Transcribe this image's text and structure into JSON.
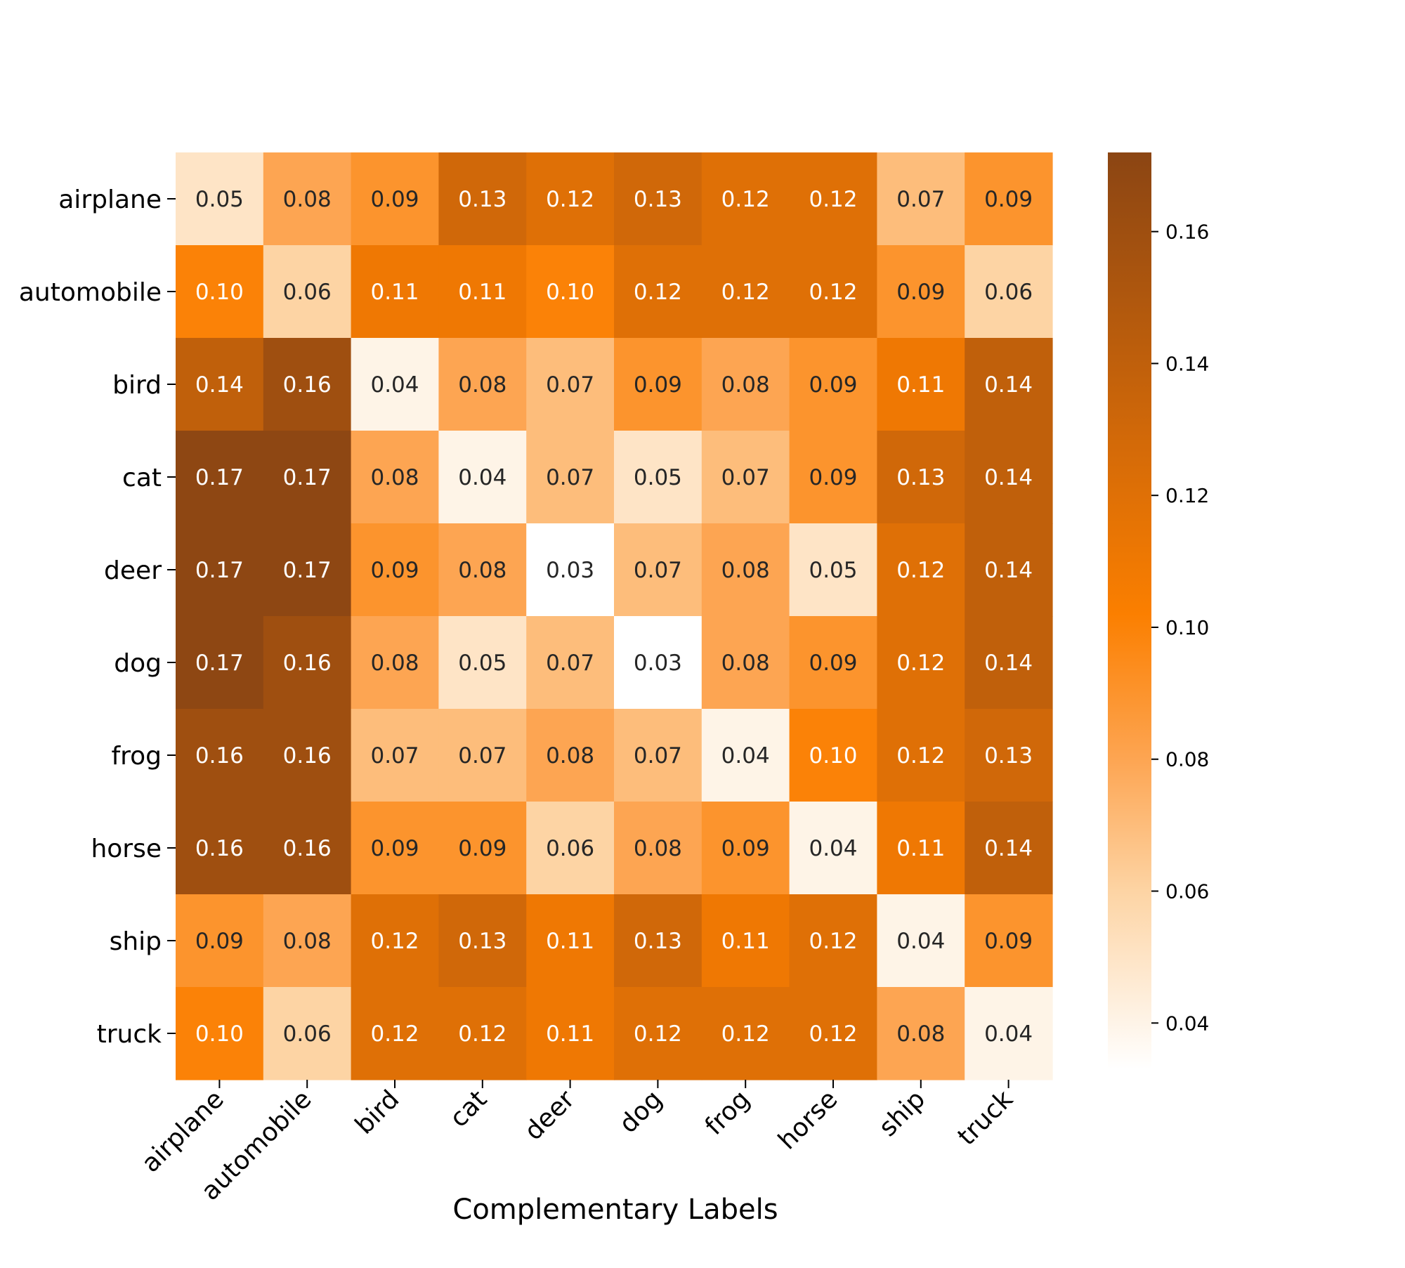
{
  "chart_data": {
    "type": "heatmap",
    "title": "",
    "xlabel": "Complementary Labels",
    "ylabel": "",
    "rows": [
      "airplane",
      "automobile",
      "bird",
      "cat",
      "deer",
      "dog",
      "frog",
      "horse",
      "ship",
      "truck"
    ],
    "columns": [
      "airplane",
      "automobile",
      "bird",
      "cat",
      "deer",
      "dog",
      "frog",
      "horse",
      "ship",
      "truck"
    ],
    "values": [
      [
        0.05,
        0.08,
        0.09,
        0.13,
        0.12,
        0.13,
        0.12,
        0.12,
        0.07,
        0.09
      ],
      [
        0.1,
        0.06,
        0.11,
        0.11,
        0.1,
        0.12,
        0.12,
        0.12,
        0.09,
        0.06
      ],
      [
        0.14,
        0.16,
        0.04,
        0.08,
        0.07,
        0.09,
        0.08,
        0.09,
        0.11,
        0.14
      ],
      [
        0.17,
        0.17,
        0.08,
        0.04,
        0.07,
        0.05,
        0.07,
        0.09,
        0.13,
        0.14
      ],
      [
        0.17,
        0.17,
        0.09,
        0.08,
        0.03,
        0.07,
        0.08,
        0.05,
        0.12,
        0.14
      ],
      [
        0.17,
        0.16,
        0.08,
        0.05,
        0.07,
        0.03,
        0.08,
        0.09,
        0.12,
        0.14
      ],
      [
        0.16,
        0.16,
        0.07,
        0.07,
        0.08,
        0.07,
        0.04,
        0.1,
        0.12,
        0.13
      ],
      [
        0.16,
        0.16,
        0.09,
        0.09,
        0.06,
        0.08,
        0.09,
        0.04,
        0.11,
        0.14
      ],
      [
        0.09,
        0.08,
        0.12,
        0.13,
        0.11,
        0.13,
        0.11,
        0.12,
        0.04,
        0.09
      ],
      [
        0.1,
        0.06,
        0.12,
        0.12,
        0.11,
        0.12,
        0.12,
        0.12,
        0.08,
        0.04
      ]
    ],
    "value_labels": [
      [
        "0.05",
        "0.08",
        "0.09",
        "0.13",
        "0.12",
        "0.13",
        "0.12",
        "0.12",
        "0.07",
        "0.09"
      ],
      [
        "0.10",
        "0.06",
        "0.11",
        "0.11",
        "0.10",
        "0.12",
        "0.12",
        "0.12",
        "0.09",
        "0.06"
      ],
      [
        "0.14",
        "0.16",
        "0.04",
        "0.08",
        "0.07",
        "0.09",
        "0.08",
        "0.09",
        "0.11",
        "0.14"
      ],
      [
        "0.17",
        "0.17",
        "0.08",
        "0.04",
        "0.07",
        "0.05",
        "0.07",
        "0.09",
        "0.13",
        "0.14"
      ],
      [
        "0.17",
        "0.17",
        "0.09",
        "0.08",
        "0.03",
        "0.07",
        "0.08",
        "0.05",
        "0.12",
        "0.14"
      ],
      [
        "0.17",
        "0.16",
        "0.08",
        "0.05",
        "0.07",
        "0.03",
        "0.08",
        "0.09",
        "0.12",
        "0.14"
      ],
      [
        "0.16",
        "0.16",
        "0.07",
        "0.07",
        "0.08",
        "0.07",
        "0.04",
        "0.10",
        "0.12",
        "0.13"
      ],
      [
        "0.16",
        "0.16",
        "0.09",
        "0.09",
        "0.06",
        "0.08",
        "0.09",
        "0.04",
        "0.11",
        "0.14"
      ],
      [
        "0.09",
        "0.08",
        "0.12",
        "0.13",
        "0.11",
        "0.13",
        "0.11",
        "0.12",
        "0.04",
        "0.09"
      ],
      [
        "0.10",
        "0.06",
        "0.12",
        "0.12",
        "0.11",
        "0.12",
        "0.12",
        "0.12",
        "0.08",
        "0.04"
      ]
    ],
    "colorbar": {
      "range": [
        0.033,
        0.172
      ],
      "ticks": [
        0.04,
        0.06,
        0.08,
        0.1,
        0.12,
        0.14,
        0.16
      ],
      "tick_labels": [
        "0.04",
        "0.06",
        "0.08",
        "0.10",
        "0.12",
        "0.14",
        "0.16"
      ],
      "color_stops": [
        {
          "value": 0.033,
          "color": "#ffffff"
        },
        {
          "value": 0.06,
          "color": "#fdd4a4"
        },
        {
          "value": 0.08,
          "color": "#fda552"
        },
        {
          "value": 0.102,
          "color": "#fb7f00"
        },
        {
          "value": 0.13,
          "color": "#d06809"
        },
        {
          "value": 0.172,
          "color": "#8b4513"
        }
      ]
    }
  }
}
